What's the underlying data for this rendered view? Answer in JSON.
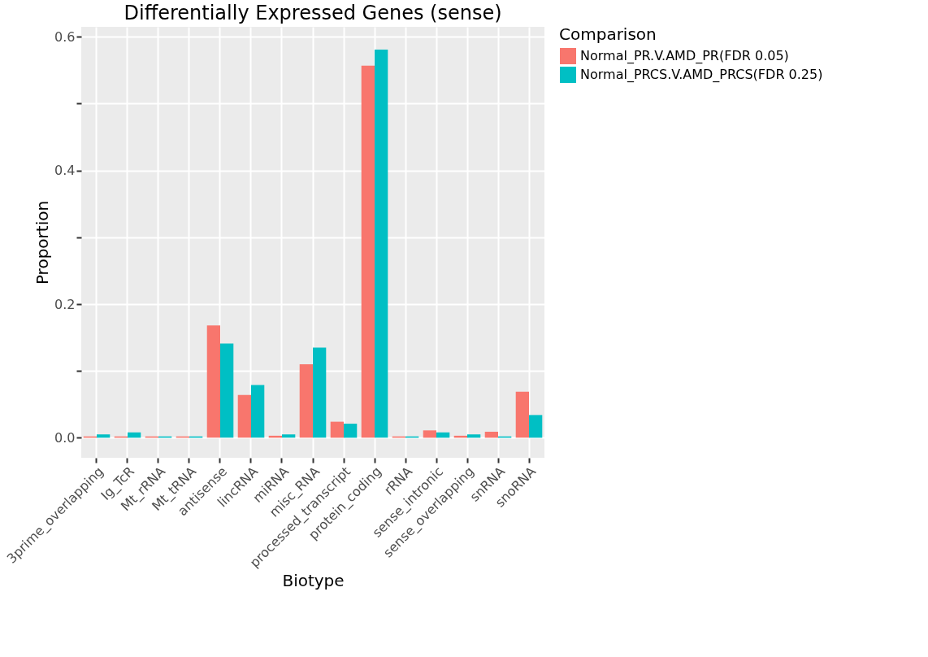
{
  "chart_data": {
    "type": "bar",
    "title": "Differentially Expressed Genes (sense)",
    "xlabel": "Biotype",
    "ylabel": "Proportion",
    "legend_title": "Comparison",
    "categories": [
      "3prime_overlapping",
      "Ig_TcR",
      "Mt_rRNA",
      "Mt_tRNA",
      "antisense",
      "lincRNA",
      "miRNA",
      "misc_RNA",
      "processed_transcript",
      "protein_coding",
      "rRNA",
      "sense_intronic",
      "sense_overlapping",
      "snRNA",
      "snoRNA"
    ],
    "series": [
      {
        "name": "Normal_PR.V.AMD_PR(FDR 0.05)",
        "color": "#f8766d",
        "values": [
          0.002,
          0.002,
          0.002,
          0.002,
          0.168,
          0.064,
          0.003,
          0.11,
          0.024,
          0.557,
          0.002,
          0.011,
          0.003,
          0.009,
          0.069
        ]
      },
      {
        "name": "Normal_PRCS.V.AMD_PRCS(FDR 0.25)",
        "color": "#00bfc4",
        "values": [
          0.005,
          0.008,
          0.002,
          0.002,
          0.141,
          0.079,
          0.005,
          0.135,
          0.021,
          0.581,
          0.002,
          0.008,
          0.005,
          0.002,
          0.034
        ]
      }
    ],
    "ylim": [
      -0.03,
      0.615
    ],
    "yticks": [
      {
        "value": 0,
        "label": "0.0"
      },
      {
        "value": 0.1,
        "label": null
      },
      0.2,
      {
        "value": 0.3,
        "label": null
      },
      0.4,
      {
        "value": 0.5,
        "label": null
      },
      0.6
    ],
    "grid": true,
    "legend": "right"
  }
}
